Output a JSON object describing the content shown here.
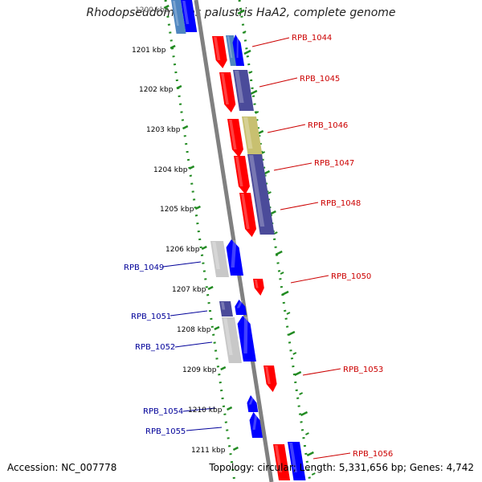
{
  "title": "Rhodopseudomonas palustris HaA2, complete genome",
  "footer": {
    "accession": "Accession: NC_007778",
    "summary": "Topology: circular; Length: 5,331,656 bp; Genes: 4,742"
  },
  "colors": {
    "forward_red": "#ff0000",
    "reverse_blue": "#0000ff",
    "purple": "#4b4b9a",
    "olive": "#c8c070",
    "grey": "#c8c8c8",
    "steel_blue": "#4f86c0",
    "backbone": "#808080",
    "dots": "#228b22",
    "label_red": "#cc0000",
    "label_blue": "#000099"
  },
  "ticks": [
    "1200 kbp",
    "1201 kbp",
    "1202 kbp",
    "1203 kbp",
    "1204 kbp",
    "1205 kbp",
    "1206 kbp",
    "1207 kbp",
    "1208 kbp",
    "1209 kbp",
    "1210 kbp",
    "1211 kbp"
  ],
  "genes": [
    {
      "label": "RPB_1044",
      "side": "right"
    },
    {
      "label": "RPB_1045",
      "side": "right"
    },
    {
      "label": "RPB_1046",
      "side": "right"
    },
    {
      "label": "RPB_1047",
      "side": "right"
    },
    {
      "label": "RPB_1048",
      "side": "right"
    },
    {
      "label": "RPB_1049",
      "side": "left"
    },
    {
      "label": "RPB_1050",
      "side": "right"
    },
    {
      "label": "RPB_1051",
      "side": "left"
    },
    {
      "label": "RPB_1052",
      "side": "left"
    },
    {
      "label": "RPB_1053",
      "side": "right"
    },
    {
      "label": "RPB_1054",
      "side": "left"
    },
    {
      "label": "RPB_1055",
      "side": "left"
    },
    {
      "label": "RPB_1056",
      "side": "right"
    }
  ]
}
